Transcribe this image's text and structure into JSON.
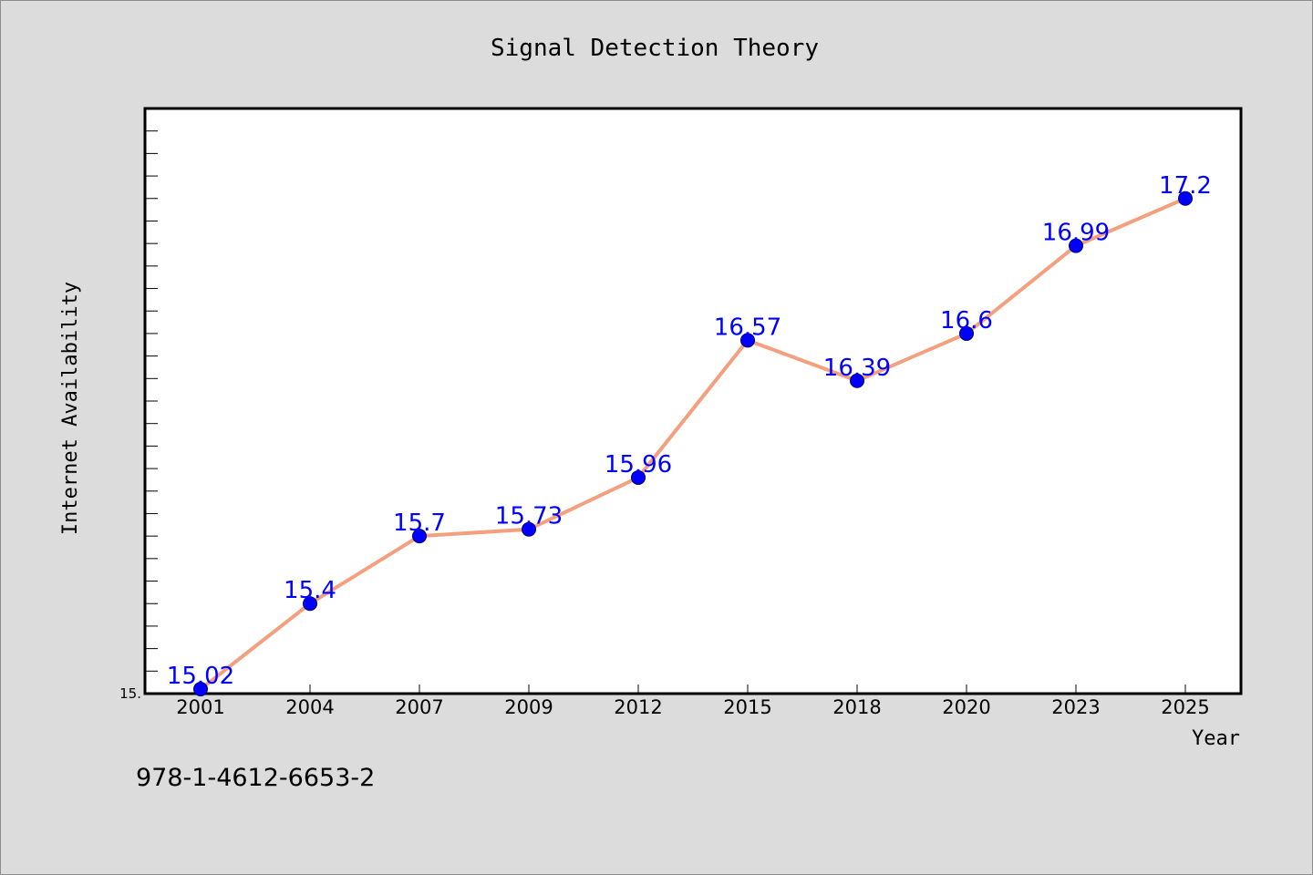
{
  "chart_data": {
    "type": "line",
    "title": "Signal Detection Theory",
    "xlabel": "Year",
    "ylabel": "Internet Availability",
    "categories": [
      "2001",
      "2004",
      "2007",
      "2009",
      "2012",
      "2015",
      "2018",
      "2020",
      "2023",
      "2025"
    ],
    "series": [
      {
        "values": [
          15.02,
          15.4,
          15.7,
          15.73,
          15.96,
          16.57,
          16.39,
          16.6,
          16.99,
          17.2
        ],
        "labels": [
          "15.02",
          "15.4",
          "15.7",
          "15.73",
          "15.96",
          "16.57",
          "16.39",
          "16.6",
          "16.99",
          "17.2"
        ]
      }
    ],
    "ylim": [
      15.0,
      17.6
    ],
    "y_tick_label": "15.",
    "grid": false,
    "line_color": "#f4a07f",
    "marker_color": "#0000ff",
    "label_color": "#0000ff"
  },
  "footnote": "978-1-4612-6653-2"
}
